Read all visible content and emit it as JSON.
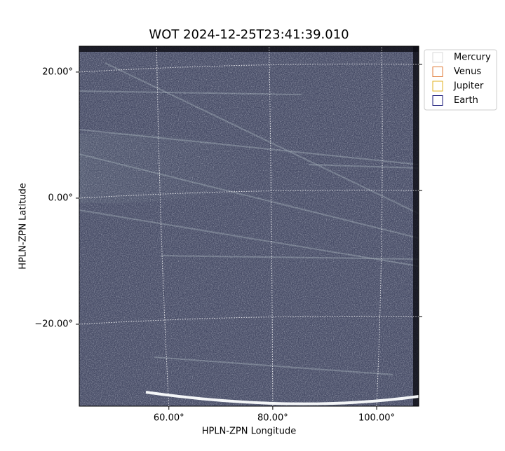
{
  "chart_data": {
    "type": "image",
    "title": "WOT 2024-12-25T23:41:39.010",
    "x_label": "HPLN-ZPN Longitude",
    "y_label": "HPLN-ZPN Latitude",
    "xlim": [
      42.75,
      108.1
    ],
    "ylim": [
      -33.0,
      24.1
    ],
    "xticks": [
      {
        "value": 60,
        "label": "60.00°"
      },
      {
        "value": 80,
        "label": "80.00°"
      },
      {
        "value": 100,
        "label": "100.00°"
      }
    ],
    "yticks": [
      {
        "value": -20,
        "label": "−20.00°"
      },
      {
        "value": 0,
        "label": "0.00°"
      },
      {
        "value": 20,
        "label": "20.00°"
      }
    ],
    "grid": true,
    "legend_position": "upper right outside",
    "legend": [
      {
        "name": "Mercury",
        "color": "#d8d8d8"
      },
      {
        "name": "Venus",
        "color": "#e07b39"
      },
      {
        "name": "Jupiter",
        "color": "#e0b020"
      },
      {
        "name": "Earth",
        "color": "#1a1a7a"
      }
    ]
  }
}
